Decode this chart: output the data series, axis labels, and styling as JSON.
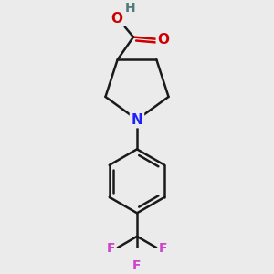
{
  "bg_color": "#ebebeb",
  "bond_color": "#1a1a1a",
  "N_color": "#2020ff",
  "O_color": "#cc0000",
  "H_color": "#507a7a",
  "F_color": "#cc44cc",
  "line_width": 1.8,
  "fig_size": [
    3.0,
    3.0
  ],
  "dpi": 100,
  "xlim": [
    -1.4,
    1.4
  ],
  "ylim": [
    -1.9,
    1.7
  ]
}
